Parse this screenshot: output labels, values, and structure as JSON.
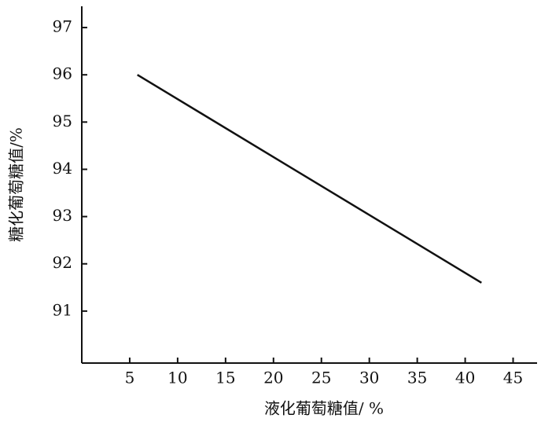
{
  "chart_data": {
    "type": "line",
    "x_label": "液化葡萄糖值/ %",
    "y_label": "糖化葡萄糖值/%",
    "series": [
      {
        "x": [
          5.8,
          41.7
        ],
        "values": [
          96.0,
          91.6
        ],
        "color": "#111111"
      }
    ],
    "xlim": [
      0,
      47.5
    ],
    "ylim": [
      89.9,
      97.45
    ],
    "xticks": [
      5,
      10,
      15,
      20,
      25,
      30,
      35,
      40,
      45
    ],
    "yticks": [
      91,
      92,
      93,
      94,
      95,
      96,
      97
    ],
    "grid": false
  }
}
